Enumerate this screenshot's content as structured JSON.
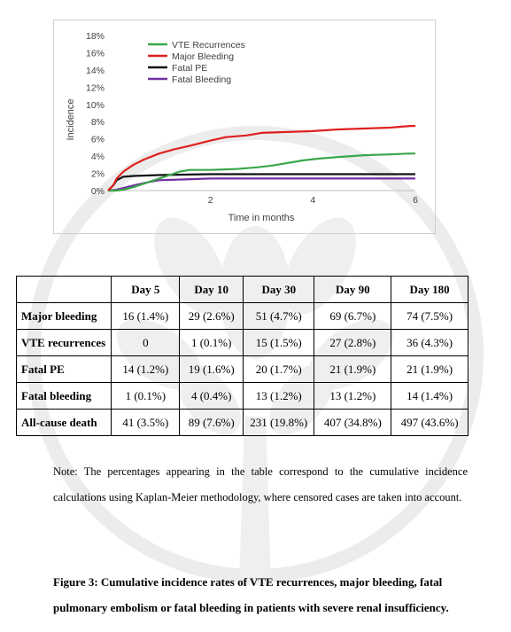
{
  "chart_data": {
    "type": "line",
    "title": "",
    "xlabel": "Time in months",
    "ylabel": "Incidence",
    "xlim": [
      0,
      6
    ],
    "ylim": [
      0,
      18
    ],
    "x_ticks": [
      2,
      4,
      6
    ],
    "y_ticks": [
      "0%",
      "2%",
      "4%",
      "6%",
      "8%",
      "10%",
      "12%",
      "14%",
      "16%",
      "18%"
    ],
    "grid": false,
    "legend_position": "top-left",
    "series": [
      {
        "name": "VTE Recurrences",
        "color": "#3aa64a",
        "points": [
          [
            0,
            0
          ],
          [
            0.17,
            0
          ],
          [
            0.3,
            0.1
          ],
          [
            0.5,
            0.4
          ],
          [
            0.7,
            0.8
          ],
          [
            0.9,
            1.2
          ],
          [
            1,
            1.4
          ],
          [
            1.2,
            1.8
          ],
          [
            1.4,
            2.2
          ],
          [
            1.6,
            2.4
          ],
          [
            2,
            2.4
          ],
          [
            2.5,
            2.5
          ],
          [
            2.9,
            2.7
          ],
          [
            3.2,
            2.9
          ],
          [
            3.5,
            3.2
          ],
          [
            3.8,
            3.5
          ],
          [
            4.1,
            3.7
          ],
          [
            4.5,
            3.9
          ],
          [
            5,
            4.1
          ],
          [
            5.5,
            4.2
          ],
          [
            5.9,
            4.3
          ],
          [
            6,
            4.3
          ]
        ]
      },
      {
        "name": "Major Bleeding",
        "color": "#e02020",
        "points": [
          [
            0,
            0
          ],
          [
            0.1,
            0.6
          ],
          [
            0.17,
            1.4
          ],
          [
            0.3,
            2.2
          ],
          [
            0.5,
            3.0
          ],
          [
            0.7,
            3.6
          ],
          [
            1,
            4.3
          ],
          [
            1.3,
            4.8
          ],
          [
            1.6,
            5.2
          ],
          [
            2,
            5.8
          ],
          [
            2.3,
            6.2
          ],
          [
            2.7,
            6.4
          ],
          [
            3,
            6.7
          ],
          [
            3.5,
            6.8
          ],
          [
            4,
            6.9
          ],
          [
            4.5,
            7.1
          ],
          [
            5,
            7.2
          ],
          [
            5.5,
            7.3
          ],
          [
            5.9,
            7.5
          ],
          [
            6,
            7.5
          ]
        ]
      },
      {
        "name": "Fatal PE",
        "color": "#111111",
        "points": [
          [
            0,
            0
          ],
          [
            0.1,
            0.6
          ],
          [
            0.17,
            1.2
          ],
          [
            0.3,
            1.6
          ],
          [
            0.5,
            1.7
          ],
          [
            1,
            1.8
          ],
          [
            2,
            1.9
          ],
          [
            6,
            1.9
          ]
        ]
      },
      {
        "name": "Fatal Bleeding",
        "color": "#7030a0",
        "points": [
          [
            0,
            0
          ],
          [
            0.17,
            0.1
          ],
          [
            0.3,
            0.3
          ],
          [
            0.5,
            0.6
          ],
          [
            0.8,
            1.0
          ],
          [
            1,
            1.2
          ],
          [
            1.5,
            1.3
          ],
          [
            2,
            1.4
          ],
          [
            6,
            1.4
          ]
        ]
      }
    ]
  },
  "table": {
    "headers": [
      "",
      "Day 5",
      "Day 10",
      "Day 30",
      "Day 90",
      "Day 180"
    ],
    "rows": [
      [
        "Major bleeding",
        "16 (1.4%)",
        "29 (2.6%)",
        "51 (4.7%)",
        "69 (6.7%)",
        "74 (7.5%)"
      ],
      [
        "VTE recurrences",
        "0",
        "1 (0.1%)",
        "15 (1.5%)",
        "27 (2.8%)",
        "36 (4.3%)"
      ],
      [
        "Fatal PE",
        "14 (1.2%)",
        "19 (1.6%)",
        "20 (1.7%)",
        "21 (1.9%)",
        "21 (1.9%)"
      ],
      [
        "Fatal bleeding",
        "1 (0.1%)",
        "4 (0.4%)",
        "13 (1.2%)",
        "13 (1.2%)",
        "14 (1.4%)"
      ],
      [
        "All-cause death",
        "41 (3.5%)",
        "89 (7.6%)",
        "231 (19.8%)",
        "407 (34.8%)",
        "497 (43.6%)"
      ]
    ]
  },
  "note": "Note: The percentages appearing in the table correspond to the cumulative incidence calculations using Kaplan-Meier methodology, where censored cases are taken into account.",
  "caption": "Figure 3: Cumulative incidence rates of VTE recurrences, major bleeding, fatal pulmonary embolism or fatal bleeding in patients with severe renal insufficiency."
}
